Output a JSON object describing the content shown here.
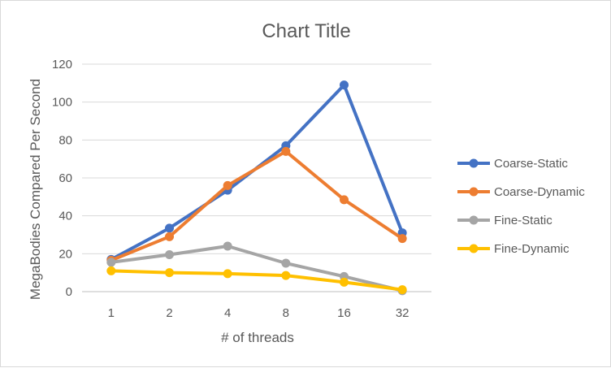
{
  "chart_data": {
    "type": "line",
    "title": "Chart Title",
    "xlabel": "# of threads",
    "ylabel": "MegaBodies Compared Per Second",
    "categories": [
      "1",
      "2",
      "4",
      "8",
      "16",
      "32"
    ],
    "ylim": [
      0,
      120
    ],
    "yticks": [
      0,
      20,
      40,
      60,
      80,
      100,
      120
    ],
    "grid": true,
    "legend_position": "right",
    "series": [
      {
        "name": "Coarse-Static",
        "color": "#4472C4",
        "values": [
          17,
          33.5,
          53.5,
          77,
          109,
          31
        ]
      },
      {
        "name": "Coarse-Dynamic",
        "color": "#ED7D31",
        "values": [
          16.5,
          29,
          56,
          74,
          48.5,
          28
        ]
      },
      {
        "name": "Fine-Static",
        "color": "#A5A5A5",
        "values": [
          15.5,
          19.5,
          24,
          15,
          8,
          0.5
        ]
      },
      {
        "name": "Fine-Dynamic",
        "color": "#FFC000",
        "values": [
          11,
          10,
          9.5,
          8.5,
          5,
          1
        ]
      }
    ]
  }
}
